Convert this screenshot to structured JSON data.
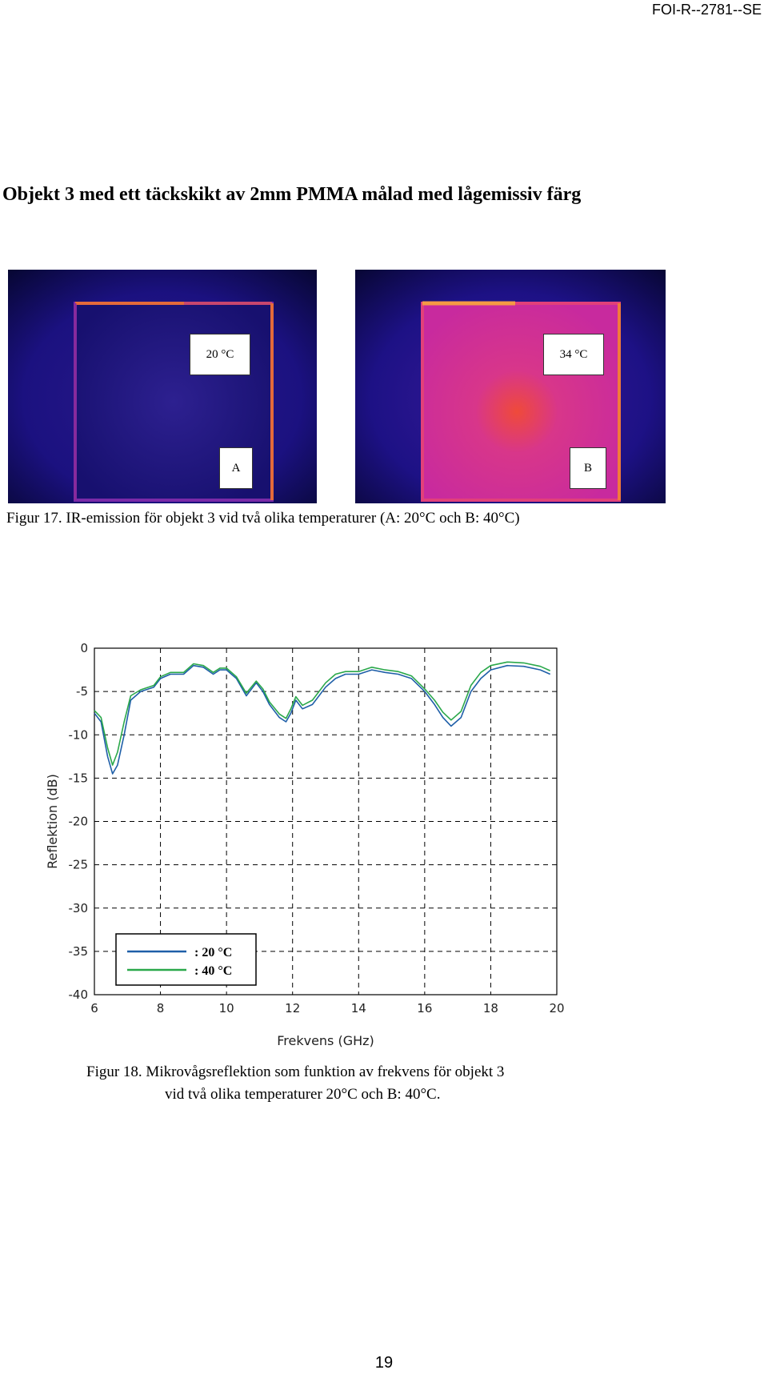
{
  "header": {
    "report_id": "FOI-R--2781--SE"
  },
  "heading": "Objekt 3 med ett täckskikt av 2mm PMMA målad med lågemissiv färg",
  "figure17": {
    "images": [
      {
        "temp_label": "20 °C",
        "panel_label": "A"
      },
      {
        "temp_label": "34 °C",
        "panel_label": "B"
      }
    ],
    "caption": "Figur 17.  IR-emission för objekt 3 vid två olika temperaturer (A: 20°C och B: 40°C)"
  },
  "figure18": {
    "caption_line1": "Figur 18.  Mikrovågsreflektion som funktion av frekvens för objekt 3",
    "caption_line2": "vid två olika temperaturer 20°C och B: 40°C."
  },
  "chart_data": {
    "type": "line",
    "title": "",
    "xlabel": "Frekvens (GHz)",
    "ylabel": "Reflektion (dB)",
    "xlim": [
      6,
      20
    ],
    "ylim": [
      -40,
      0
    ],
    "xticks": [
      6,
      8,
      10,
      12,
      14,
      16,
      18,
      20
    ],
    "yticks": [
      0,
      -5,
      -10,
      -15,
      -20,
      -25,
      -30,
      -35,
      -40
    ],
    "grid": true,
    "legend_position": "lower-left",
    "series": [
      {
        "name": ": 20 °C",
        "color": "#1f5fa8",
        "x": [
          6.0,
          6.2,
          6.4,
          6.55,
          6.7,
          6.9,
          7.1,
          7.4,
          7.8,
          8.0,
          8.3,
          8.7,
          9.0,
          9.3,
          9.6,
          9.8,
          10.0,
          10.3,
          10.6,
          10.9,
          11.1,
          11.3,
          11.6,
          11.8,
          11.95,
          12.1,
          12.3,
          12.6,
          13.0,
          13.3,
          13.6,
          14.0,
          14.4,
          14.8,
          15.2,
          15.6,
          16.0,
          16.3,
          16.55,
          16.8,
          17.1,
          17.4,
          17.7,
          18.0,
          18.5,
          19.0,
          19.5,
          19.8
        ],
        "y": [
          -7.5,
          -8.5,
          -12.5,
          -14.5,
          -13.5,
          -10.0,
          -6.0,
          -5.0,
          -4.5,
          -3.5,
          -3.0,
          -3.0,
          -2.0,
          -2.2,
          -3.0,
          -2.5,
          -2.5,
          -3.5,
          -5.5,
          -4.0,
          -5.0,
          -6.5,
          -8.0,
          -8.5,
          -7.5,
          -6.0,
          -7.0,
          -6.5,
          -4.5,
          -3.5,
          -3.0,
          -3.0,
          -2.5,
          -2.8,
          -3.0,
          -3.5,
          -5.0,
          -6.5,
          -8.0,
          -9.0,
          -8.0,
          -5.0,
          -3.5,
          -2.5,
          -2.0,
          -2.1,
          -2.5,
          -3.0
        ]
      },
      {
        "name": ": 40 °C",
        "color": "#2aa84a",
        "x": [
          6.0,
          6.2,
          6.4,
          6.55,
          6.7,
          6.9,
          7.1,
          7.4,
          7.8,
          8.0,
          8.3,
          8.7,
          9.0,
          9.3,
          9.6,
          9.8,
          10.0,
          10.3,
          10.6,
          10.9,
          11.1,
          11.3,
          11.6,
          11.8,
          11.95,
          12.1,
          12.3,
          12.6,
          13.0,
          13.3,
          13.6,
          14.0,
          14.4,
          14.8,
          15.2,
          15.6,
          16.0,
          16.3,
          16.55,
          16.8,
          17.1,
          17.4,
          17.7,
          18.0,
          18.5,
          19.0,
          19.5,
          19.8
        ],
        "y": [
          -7.2,
          -8.0,
          -11.5,
          -13.5,
          -12.0,
          -8.5,
          -5.5,
          -4.8,
          -4.3,
          -3.3,
          -2.8,
          -2.8,
          -1.8,
          -2.0,
          -2.8,
          -2.3,
          -2.3,
          -3.3,
          -5.2,
          -3.8,
          -4.7,
          -6.2,
          -7.6,
          -8.1,
          -7.0,
          -5.6,
          -6.6,
          -6.0,
          -4.0,
          -3.0,
          -2.7,
          -2.7,
          -2.2,
          -2.5,
          -2.7,
          -3.2,
          -4.7,
          -6.0,
          -7.4,
          -8.3,
          -7.3,
          -4.3,
          -2.8,
          -2.0,
          -1.6,
          -1.7,
          -2.1,
          -2.6
        ]
      }
    ]
  }
}
